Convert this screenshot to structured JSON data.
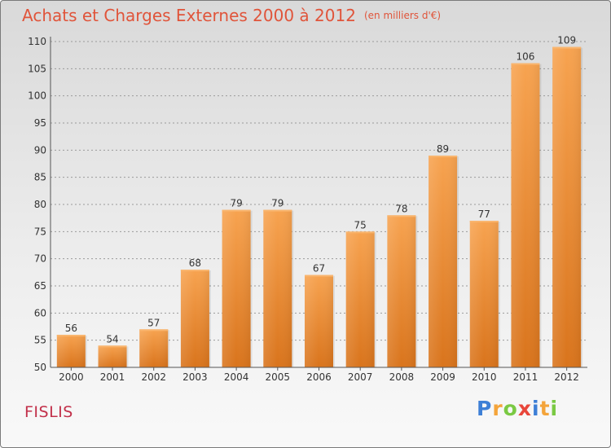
{
  "title": "Achats et Charges Externes 2000 à 2012",
  "unit": "(en milliers d'€)",
  "commune": "FISLIS",
  "logo": {
    "letters": [
      "P",
      "r",
      "o",
      "x",
      "i",
      "t",
      "i"
    ],
    "colors": [
      "#3d7fd6",
      "#f4a43a",
      "#7ac943",
      "#e8463a",
      "#3d7fd6",
      "#f4a43a",
      "#7ac943"
    ]
  },
  "colors": {
    "bar_top": "#f7a350",
    "bar_bottom": "#d9741c",
    "text": "#333333",
    "grid": "#9a9a9a"
  },
  "chart_data": {
    "type": "bar",
    "categories": [
      "2000",
      "2001",
      "2002",
      "2003",
      "2004",
      "2005",
      "2006",
      "2007",
      "2008",
      "2009",
      "2010",
      "2011",
      "2012"
    ],
    "values": [
      56,
      54,
      57,
      68,
      79,
      79,
      67,
      75,
      78,
      89,
      77,
      106,
      109
    ],
    "title": "Achats et Charges Externes 2000 à 2012",
    "ylim": [
      50,
      110
    ],
    "yticks": [
      50,
      55,
      60,
      65,
      70,
      75,
      80,
      85,
      90,
      95,
      100,
      105,
      110
    ],
    "grid": true
  }
}
